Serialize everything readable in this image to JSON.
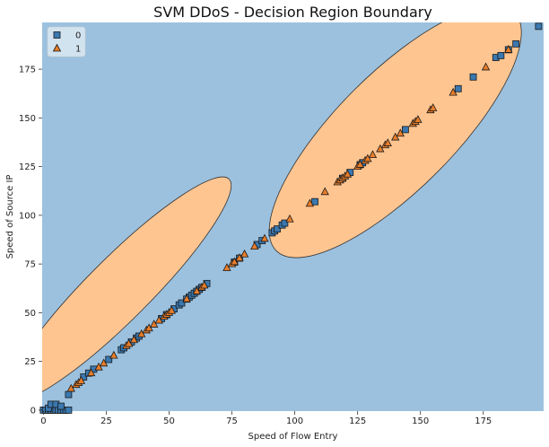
{
  "chart_data": {
    "type": "scatter",
    "title": "SVM DDoS - Decision Region Boundary",
    "xlabel": "Speed of Flow Entry",
    "ylabel": "Speed of Source IP",
    "xlim": [
      -0.5,
      199
    ],
    "ylim": [
      -0.5,
      199
    ],
    "xticks": [
      "0",
      "25",
      "50",
      "75",
      "100",
      "125",
      "150",
      "175"
    ],
    "yticks": [
      "0",
      "25",
      "50",
      "75",
      "100",
      "125",
      "150",
      "175"
    ],
    "grid": false,
    "legend": {
      "position": "top-left",
      "entries": [
        "0",
        "1"
      ]
    },
    "colors": {
      "region_0": "#9cc1de",
      "region_1": "#fec591",
      "class_0": "#3a78b0",
      "class_1": "#e87d2a",
      "edge": "#1a1a1a",
      "boundary": "#333333"
    },
    "regions": [
      {
        "class": "1",
        "center": [
          30,
          62
        ],
        "semi_axes": [
          62,
          16
        ],
        "angle_deg": -45
      },
      {
        "class": "1",
        "center": [
          140,
          143
        ],
        "semi_axes": [
          67,
          30
        ],
        "angle_deg": -45
      }
    ],
    "series": [
      {
        "name": "0",
        "marker": "square",
        "x": [
          0,
          1,
          2,
          3,
          4,
          5,
          6,
          7,
          8,
          9,
          10,
          2,
          3,
          5,
          7,
          10,
          16,
          18,
          20,
          26,
          31,
          32,
          35,
          37,
          38,
          47,
          49,
          52,
          54,
          55,
          57,
          58,
          59,
          60,
          61,
          62,
          63,
          65,
          76,
          78,
          85,
          87,
          91,
          92,
          93,
          95,
          96,
          108,
          119,
          122,
          126,
          127,
          144,
          165,
          171,
          180,
          182,
          185,
          188,
          197
        ],
        "y": [
          0,
          0,
          0,
          0,
          0,
          0,
          0,
          0,
          0,
          0,
          0,
          1,
          3,
          3,
          2,
          8,
          17,
          19,
          21,
          26,
          31,
          32,
          35,
          37,
          38,
          47,
          49,
          52,
          54,
          55,
          57,
          58,
          59,
          60,
          61,
          62,
          63,
          65,
          76,
          78,
          85,
          87,
          91,
          92,
          93,
          95,
          96,
          107,
          119,
          122,
          126,
          127,
          144,
          165,
          171,
          181,
          182,
          185,
          188,
          197
        ]
      },
      {
        "name": "1",
        "marker": "triangle",
        "x": [
          11,
          13,
          14,
          15,
          19,
          22,
          24,
          28,
          33,
          34,
          36,
          39,
          41,
          42,
          44,
          46,
          48,
          49,
          50,
          51,
          57,
          61,
          63,
          64,
          73,
          75,
          76,
          78,
          80,
          84,
          88,
          98,
          106,
          112,
          117,
          118,
          119,
          120,
          121,
          125,
          126,
          128,
          129,
          131,
          134,
          136,
          137,
          140,
          142,
          147,
          148,
          149,
          154,
          155,
          163,
          176,
          185
        ],
        "y": [
          11,
          13,
          14,
          15,
          19,
          22,
          24,
          28,
          33,
          34,
          36,
          39,
          41,
          42,
          44,
          46,
          48,
          49,
          50,
          51,
          57,
          61,
          63,
          64,
          73,
          75,
          76,
          78,
          80,
          84,
          88,
          98,
          106,
          112,
          117,
          118,
          119,
          120,
          121,
          125,
          126,
          128,
          129,
          131,
          134,
          136,
          137,
          140,
          142,
          147,
          148,
          149,
          154,
          155,
          163,
          176,
          185
        ]
      }
    ]
  }
}
